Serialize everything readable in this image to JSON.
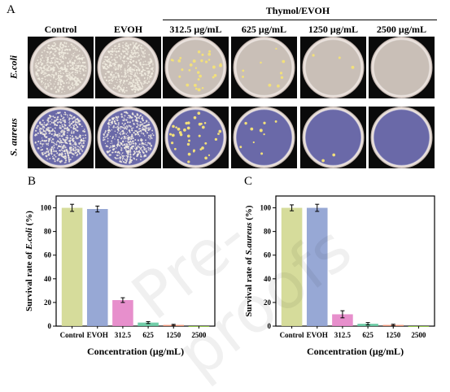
{
  "panels": {
    "a_label": "A",
    "b_label": "B",
    "c_label": "C"
  },
  "grid": {
    "group_label": "Thymol/EVOH",
    "columns": [
      "Control",
      "EVOH",
      "312.5 μg/mL",
      "625 μg/mL",
      "1250 μg/mL",
      "2500 μg/mL"
    ],
    "rows": [
      "E.coli",
      "S. aureus"
    ],
    "colony_density": [
      [
        1,
        1,
        0.1,
        0.03,
        0.01,
        0
      ],
      [
        1,
        1,
        0.12,
        0.03,
        0.005,
        0
      ]
    ],
    "colors": {
      "ecoli_agar": "#c9bfb7",
      "saureus_agar": "#6a69a8",
      "colony": "#f2e07a",
      "lawn_colony": "#f1ece0"
    }
  },
  "watermark": "Pre-proofs",
  "chart_data": [
    {
      "type": "bar",
      "panel": "B",
      "categories": [
        "Control",
        "EVOH",
        "312.5",
        "625",
        "1250",
        "2500"
      ],
      "values": [
        100,
        99,
        22,
        3,
        1,
        0
      ],
      "errors": [
        3,
        2.5,
        2,
        0.8,
        0.5,
        0
      ],
      "colors": [
        "#d1d890",
        "#8c9fd0",
        "#e483c7",
        "#62c9a0",
        "#f29173",
        "#9dd84e"
      ],
      "xlabel": "Concentration (μg/mL)",
      "ylabel_prefix": "Survival rate of ",
      "ylabel_species": "E.coli",
      "ylabel_suffix": " (%)",
      "ylim": [
        0,
        110
      ],
      "yticks": [
        0,
        20,
        40,
        60,
        80,
        100
      ]
    },
    {
      "type": "bar",
      "panel": "C",
      "categories": [
        "Control",
        "EVOH",
        "312.5",
        "625",
        "1250",
        "2500"
      ],
      "values": [
        100,
        100,
        10,
        2,
        1,
        0
      ],
      "errors": [
        2.5,
        3,
        3,
        1,
        0.6,
        0
      ],
      "colors": [
        "#d1d890",
        "#8c9fd0",
        "#e483c7",
        "#62c9a0",
        "#f29173",
        "#9dd84e"
      ],
      "xlabel": "Concentration (μg/mL)",
      "ylabel_prefix": "Survival rate of ",
      "ylabel_species": "S.aureus",
      "ylabel_suffix": " (%)",
      "ylim": [
        0,
        110
      ],
      "yticks": [
        0,
        20,
        40,
        60,
        80,
        100
      ]
    }
  ]
}
